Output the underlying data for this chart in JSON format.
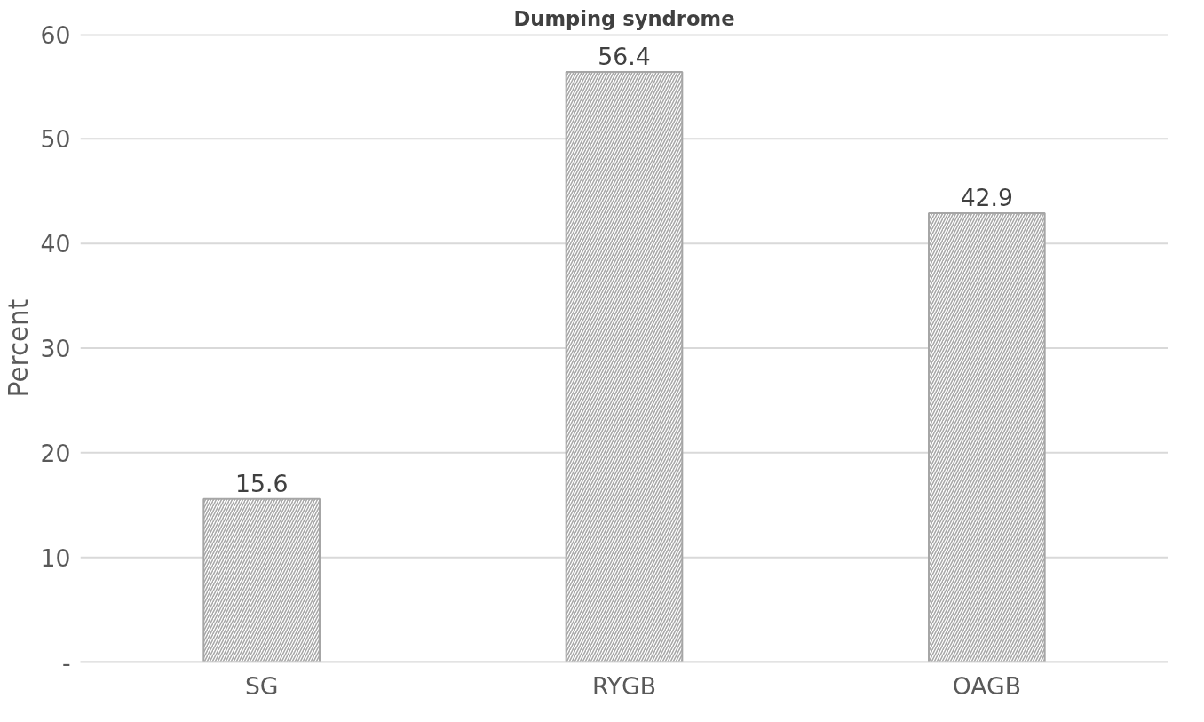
{
  "chart_data": {
    "type": "bar",
    "title": "Dumping syndrome",
    "ylabel": "Percent",
    "categories": [
      "SG",
      "RYGB",
      "OAGB"
    ],
    "values": [
      15.6,
      56.4,
      42.9
    ],
    "color": "#a6a6a6",
    "ylim": [
      0,
      60
    ],
    "yticks": [
      {
        "value": 0,
        "label": "-"
      },
      10,
      20,
      30,
      40,
      50,
      60
    ],
    "grid": "y",
    "data_labels": true
  }
}
